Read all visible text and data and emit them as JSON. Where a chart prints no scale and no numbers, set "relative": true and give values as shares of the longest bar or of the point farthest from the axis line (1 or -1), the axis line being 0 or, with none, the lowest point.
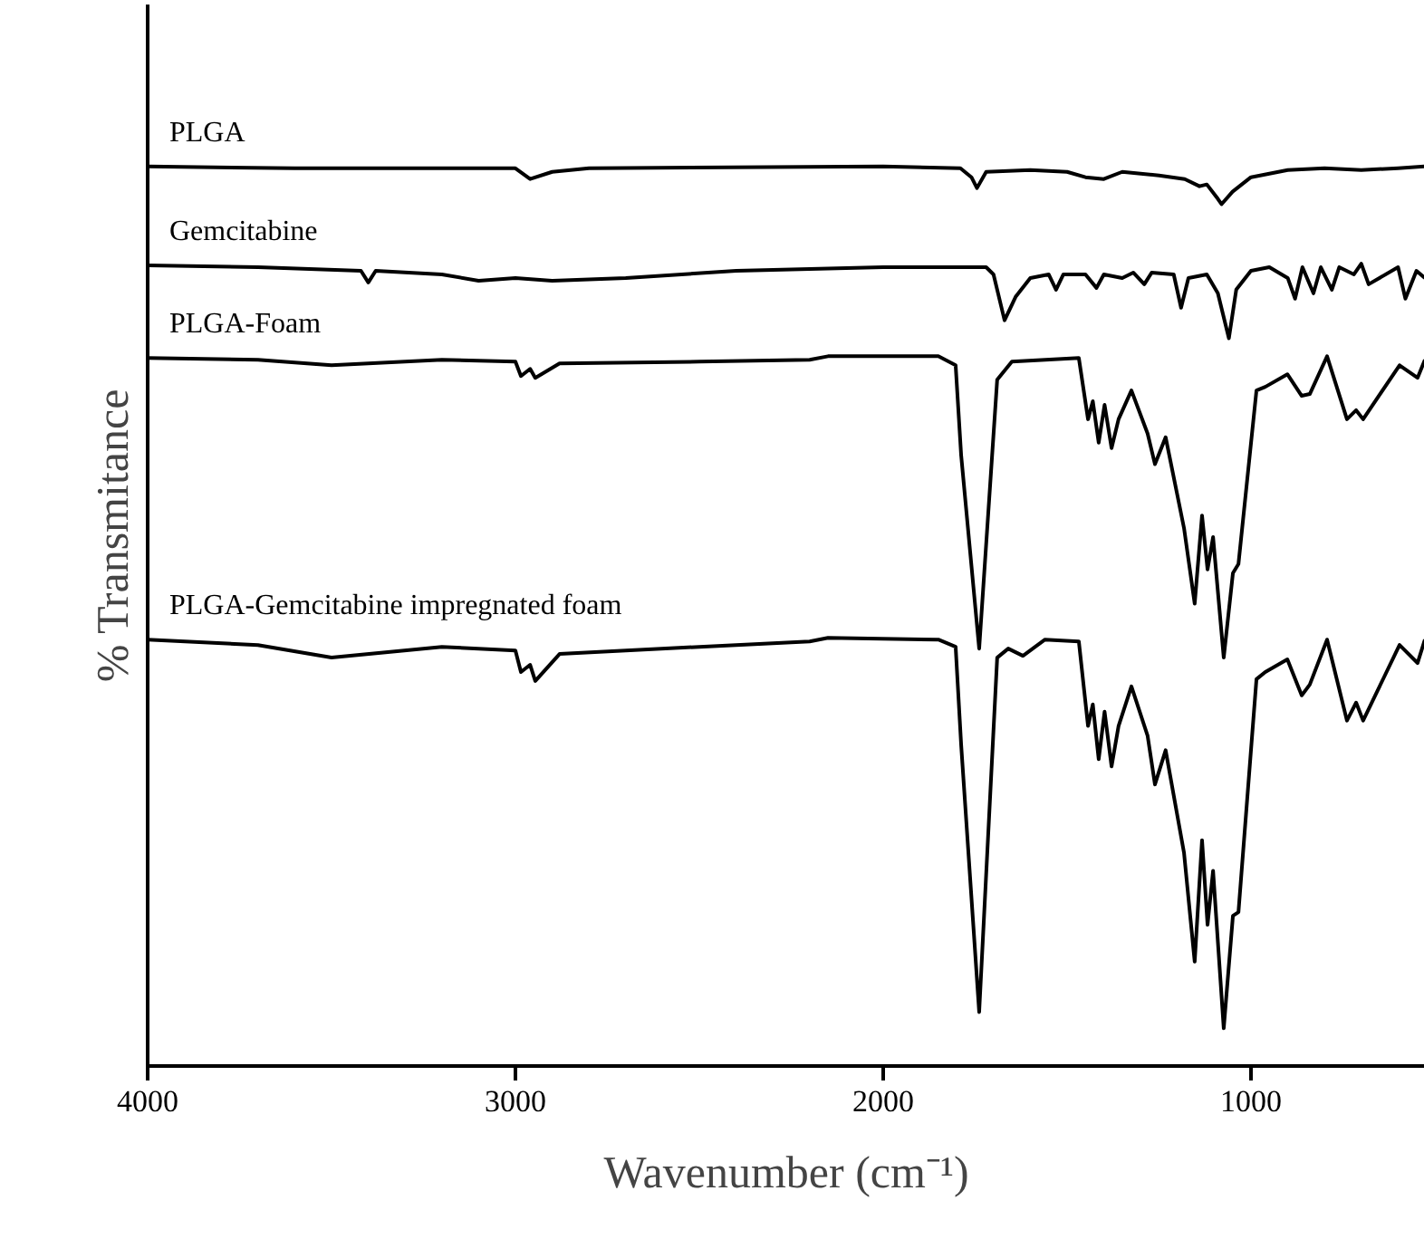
{
  "chart_data": {
    "type": "line",
    "relative": true,
    "xlabel": "Wavenumber (cm⁻¹)",
    "ylabel": "% Transmitance",
    "xlim": [
      4000,
      527
    ],
    "xticks": [
      4000,
      3000,
      2000,
      1000
    ],
    "tick_labels": "x",
    "grid": false,
    "legend": false,
    "marker": "none",
    "line_style": "solid",
    "series": [
      {
        "name": "PLGA",
        "color": "#000000",
        "x": [
          4000,
          3600,
          3000,
          2960,
          2900,
          2800,
          2000,
          1790,
          1760,
          1745,
          1720,
          1600,
          1500,
          1450,
          1400,
          1350,
          1250,
          1180,
          1140,
          1120,
          1090,
          1080,
          1050,
          1000,
          900,
          800,
          700,
          600,
          527
        ],
        "values": [
          1.0,
          0.998,
          0.998,
          0.986,
          0.994,
          0.998,
          1.0,
          0.998,
          0.988,
          0.976,
          0.994,
          0.996,
          0.994,
          0.988,
          0.986,
          0.994,
          0.99,
          0.986,
          0.978,
          0.98,
          0.964,
          0.958,
          0.972,
          0.988,
          0.996,
          0.998,
          0.996,
          0.998,
          1.0
        ]
      },
      {
        "name": "Gemcitabine",
        "color": "#000000",
        "x": [
          4000,
          3700,
          3420,
          3400,
          3380,
          3200,
          3100,
          3000,
          2900,
          2700,
          2400,
          2000,
          1720,
          1700,
          1670,
          1640,
          1600,
          1550,
          1530,
          1510,
          1450,
          1420,
          1400,
          1350,
          1320,
          1290,
          1270,
          1210,
          1190,
          1170,
          1120,
          1090,
          1060,
          1040,
          1000,
          950,
          900,
          880,
          860,
          830,
          810,
          780,
          760,
          720,
          700,
          680,
          600,
          580,
          550,
          527
        ],
        "values": [
          0.89,
          0.888,
          0.884,
          0.871,
          0.884,
          0.88,
          0.873,
          0.876,
          0.873,
          0.876,
          0.884,
          0.888,
          0.888,
          0.88,
          0.829,
          0.855,
          0.876,
          0.88,
          0.863,
          0.88,
          0.88,
          0.865,
          0.88,
          0.876,
          0.882,
          0.869,
          0.882,
          0.88,
          0.843,
          0.876,
          0.88,
          0.859,
          0.809,
          0.863,
          0.884,
          0.888,
          0.876,
          0.853,
          0.888,
          0.859,
          0.888,
          0.863,
          0.888,
          0.88,
          0.892,
          0.869,
          0.888,
          0.853,
          0.884,
          0.876
        ]
      },
      {
        "name": "PLGA-Foam",
        "color": "#000000",
        "x": [
          4000,
          3700,
          3500,
          3200,
          3000,
          2985,
          2960,
          2946,
          2880,
          2500,
          2200,
          2150,
          1850,
          1803,
          1788,
          1739,
          1690,
          1650,
          1468,
          1443,
          1430,
          1414,
          1398,
          1379,
          1360,
          1325,
          1281,
          1261,
          1232,
          1182,
          1153,
          1133,
          1118,
          1103,
          1074,
          1049,
          1034,
          985,
          961,
          901,
          862,
          840,
          793,
          739,
          714,
          695,
          596,
          547,
          527
        ],
        "values": [
          0.787,
          0.785,
          0.779,
          0.785,
          0.783,
          0.767,
          0.775,
          0.765,
          0.781,
          0.783,
          0.785,
          0.789,
          0.789,
          0.779,
          0.679,
          0.464,
          0.763,
          0.783,
          0.787,
          0.719,
          0.739,
          0.693,
          0.735,
          0.687,
          0.719,
          0.751,
          0.703,
          0.669,
          0.699,
          0.598,
          0.514,
          0.612,
          0.552,
          0.588,
          0.454,
          0.548,
          0.558,
          0.751,
          0.755,
          0.769,
          0.745,
          0.747,
          0.789,
          0.719,
          0.729,
          0.719,
          0.779,
          0.765,
          0.785
        ]
      },
      {
        "name": "PLGA-Gemcitabine impregnated foam",
        "color": "#000000",
        "x": [
          4000,
          3700,
          3500,
          3200,
          3000,
          2985,
          2960,
          2946,
          2880,
          2500,
          2200,
          2150,
          1850,
          1803,
          1788,
          1739,
          1690,
          1660,
          1620,
          1560,
          1468,
          1443,
          1430,
          1414,
          1398,
          1379,
          1360,
          1325,
          1281,
          1261,
          1232,
          1182,
          1153,
          1133,
          1118,
          1103,
          1074,
          1049,
          1034,
          985,
          961,
          901,
          862,
          840,
          793,
          739,
          714,
          695,
          596,
          547,
          527
        ],
        "values": [
          0.474,
          0.468,
          0.454,
          0.466,
          0.462,
          0.438,
          0.446,
          0.428,
          0.458,
          0.466,
          0.472,
          0.476,
          0.474,
          0.466,
          0.357,
          0.06,
          0.454,
          0.464,
          0.456,
          0.474,
          0.472,
          0.378,
          0.402,
          0.341,
          0.394,
          0.333,
          0.378,
          0.422,
          0.367,
          0.313,
          0.351,
          0.237,
          0.116,
          0.251,
          0.157,
          0.217,
          0.042,
          0.167,
          0.171,
          0.43,
          0.438,
          0.452,
          0.412,
          0.424,
          0.474,
          0.384,
          0.404,
          0.384,
          0.468,
          0.448,
          0.474
        ]
      }
    ]
  }
}
